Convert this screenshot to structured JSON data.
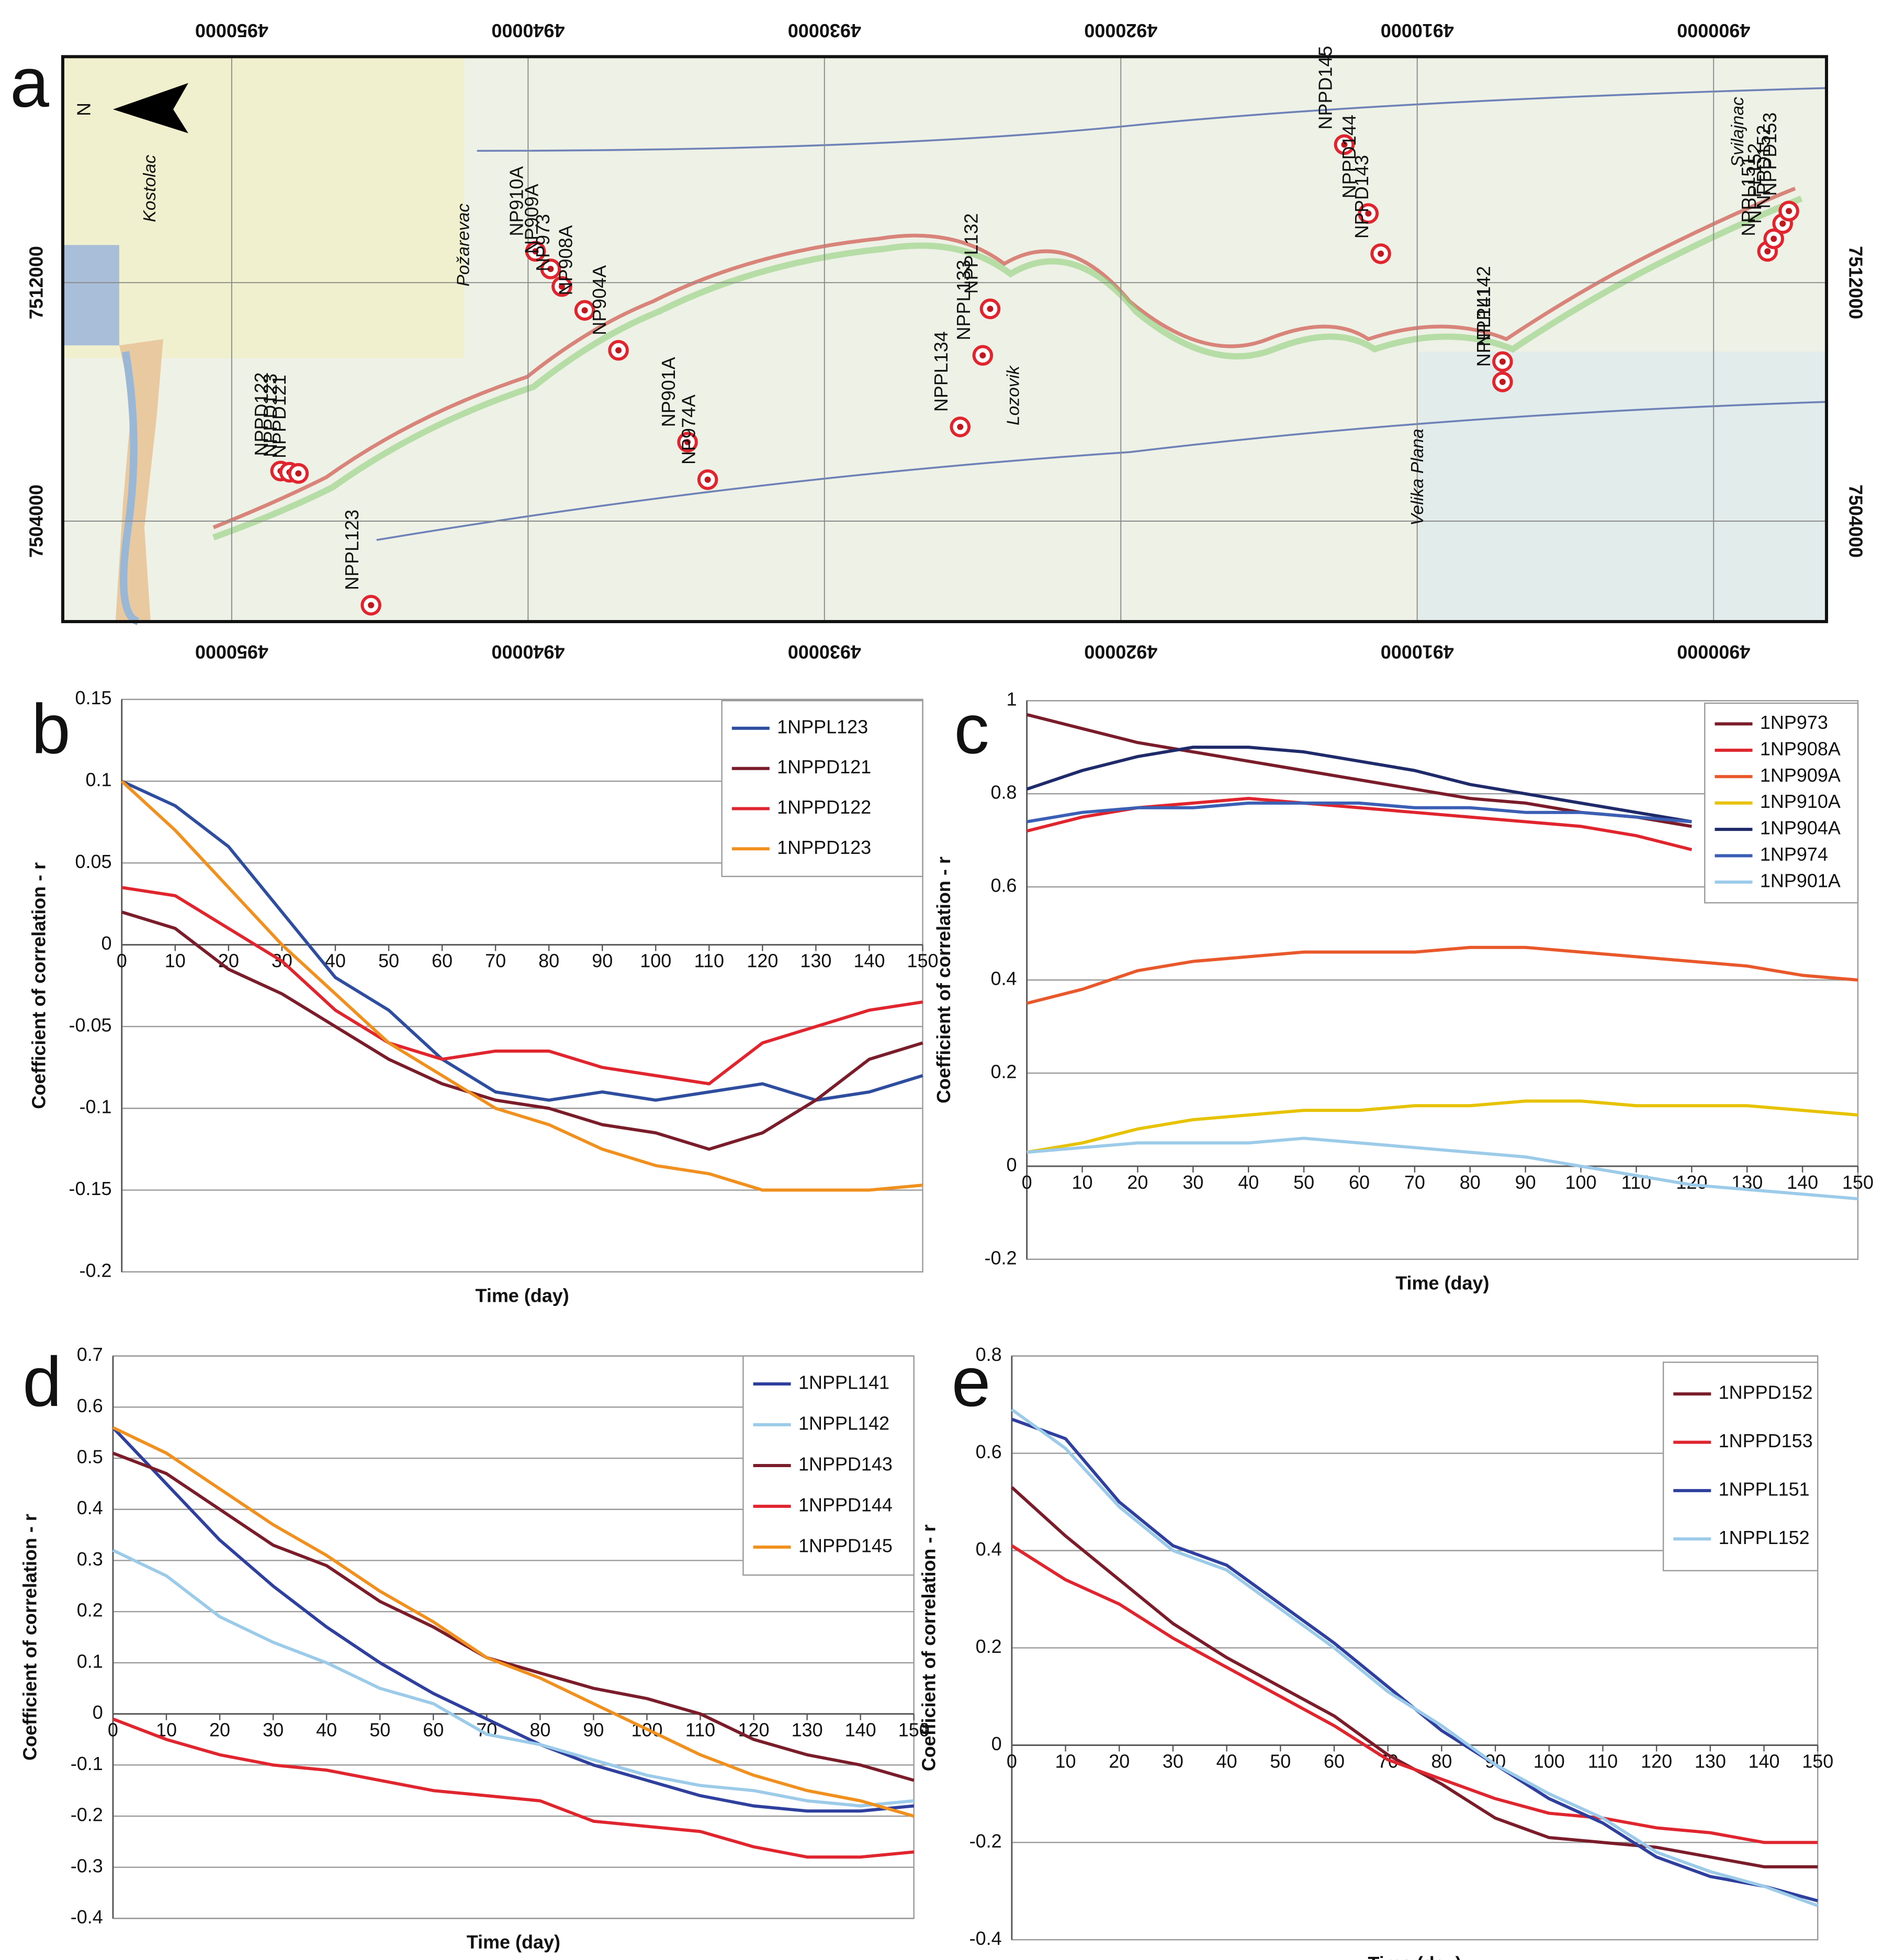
{
  "chart_data": [
    {
      "type": "map",
      "label": "a",
      "north": "N",
      "xlim": [
        4955700,
        4896190
      ],
      "ylim": [
        7500630,
        7519580
      ],
      "xticks": [
        4950000,
        4940000,
        4930000,
        4920000,
        4910000,
        4900000
      ],
      "yticks": [
        7504000,
        7512000
      ],
      "places": [
        "Kostolac",
        "Požarevac",
        "Lozovik",
        "Velika Plana",
        "Svilajnac"
      ],
      "points": [
        {
          "label": "NPPD122",
          "x": 4948350,
          "y": 7505680
        },
        {
          "label": "NPPD123",
          "x": 4948050,
          "y": 7505640
        },
        {
          "label": "NPPD121",
          "x": 4947750,
          "y": 7505600
        },
        {
          "label": "NPPL123",
          "x": 4945300,
          "y": 7501180
        },
        {
          "label": "NP910A",
          "x": 4939750,
          "y": 7513050
        },
        {
          "label": "NP909A",
          "x": 4939240,
          "y": 7512460
        },
        {
          "label": "NP973",
          "x": 4938860,
          "y": 7511870
        },
        {
          "label": "NP908A",
          "x": 4938090,
          "y": 7511070
        },
        {
          "label": "NP904A",
          "x": 4936950,
          "y": 7509730
        },
        {
          "label": "NP901A",
          "x": 4934620,
          "y": 7506650
        },
        {
          "label": "NP974A",
          "x": 4933940,
          "y": 7505390
        },
        {
          "label": "NPPL134",
          "x": 4925420,
          "y": 7507160
        },
        {
          "label": "NPPL133",
          "x": 4924660,
          "y": 7509560
        },
        {
          "label": "NPPL132",
          "x": 4924410,
          "y": 7511120
        },
        {
          "label": "NPPD145",
          "x": 4912460,
          "y": 7516630
        },
        {
          "label": "NPPD144",
          "x": 4911650,
          "y": 7514320
        },
        {
          "label": "NPPD143",
          "x": 4911230,
          "y": 7512970
        },
        {
          "label": "NPPL142",
          "x": 4907120,
          "y": 7509350
        },
        {
          "label": "NPPL141",
          "x": 4907120,
          "y": 7508670
        },
        {
          "label": "NPPL151",
          "x": 4898180,
          "y": 7513050
        },
        {
          "label": "NPPL152",
          "x": 4897970,
          "y": 7513470
        },
        {
          "label": "NPPD152",
          "x": 4897670,
          "y": 7513980
        },
        {
          "label": "NPPD153",
          "x": 4897460,
          "y": 7514400
        }
      ]
    },
    {
      "type": "line",
      "label": "b",
      "x_label": "Time (day)",
      "y_label": "Coefficient of correlation - r",
      "legend": "upper right",
      "grid": true,
      "xlim": [
        0,
        150
      ],
      "ylim": [
        -0.2,
        0.15
      ],
      "xticks": [
        0,
        10,
        20,
        30,
        40,
        50,
        60,
        70,
        80,
        90,
        100,
        110,
        120,
        130,
        140,
        150
      ],
      "yticks": [
        -0.2,
        -0.15,
        -0.1,
        -0.05,
        0,
        0.05,
        0.1,
        0.15
      ],
      "x": [
        0,
        10,
        20,
        30,
        40,
        50,
        60,
        70,
        80,
        90,
        100,
        110,
        120,
        130,
        140,
        150
      ],
      "series": [
        {
          "name": "1NPPL123",
          "color": "#2e4d9e",
          "values": [
            0.1,
            0.085,
            0.06,
            0.02,
            -0.02,
            -0.04,
            -0.07,
            -0.09,
            -0.095,
            -0.09,
            -0.095,
            -0.09,
            -0.085,
            -0.095,
            -0.09,
            -0.08
          ]
        },
        {
          "name": "1NPPD121",
          "color": "#7a1c2a",
          "values": [
            0.02,
            0.01,
            -0.015,
            -0.03,
            -0.05,
            -0.07,
            -0.085,
            -0.095,
            -0.1,
            -0.11,
            -0.115,
            -0.125,
            -0.115,
            -0.095,
            -0.07,
            -0.06
          ]
        },
        {
          "name": "1NPPD122",
          "color": "#e0252f",
          "values": [
            0.035,
            0.03,
            0.01,
            -0.01,
            -0.04,
            -0.06,
            -0.07,
            -0.065,
            -0.065,
            -0.075,
            -0.08,
            -0.085,
            -0.06,
            -0.05,
            -0.04,
            -0.035
          ]
        },
        {
          "name": "1NPPD123",
          "color": "#f0901f",
          "values": [
            0.1,
            0.07,
            0.035,
            0,
            -0.03,
            -0.06,
            -0.08,
            -0.1,
            -0.11,
            -0.125,
            -0.135,
            -0.14,
            -0.15,
            -0.15,
            -0.15,
            -0.147
          ]
        }
      ]
    },
    {
      "type": "line",
      "label": "c",
      "x_label": "Time (day)",
      "y_label": "Coefficient of correlation - r",
      "legend": "upper right",
      "grid": true,
      "xlim": [
        0,
        150
      ],
      "ylim": [
        -0.2,
        1
      ],
      "xticks": [
        0,
        10,
        20,
        30,
        40,
        50,
        60,
        70,
        80,
        90,
        100,
        110,
        120,
        130,
        140,
        150
      ],
      "yticks": [
        -0.2,
        0,
        0.2,
        0.4,
        0.6,
        0.8,
        1
      ],
      "x": [
        0,
        10,
        20,
        30,
        40,
        50,
        60,
        70,
        80,
        90,
        100,
        110,
        120,
        130,
        140,
        150
      ],
      "series": [
        {
          "name": "1NP973",
          "color": "#7a1c2a",
          "values": [
            0.97,
            0.94,
            0.91,
            0.89,
            0.87,
            0.85,
            0.83,
            0.81,
            0.79,
            0.78,
            0.76,
            0.75,
            0.73,
            null,
            null,
            null
          ]
        },
        {
          "name": "1NP908A",
          "color": "#e0252f",
          "values": [
            0.72,
            0.75,
            0.77,
            0.78,
            0.79,
            0.78,
            0.77,
            0.76,
            0.75,
            0.74,
            0.73,
            0.71,
            0.68,
            null,
            null,
            null
          ]
        },
        {
          "name": "1NP909A",
          "color": "#e8582a",
          "values": [
            0.35,
            0.38,
            0.42,
            0.44,
            0.45,
            0.46,
            0.46,
            0.46,
            0.47,
            0.47,
            0.46,
            0.45,
            0.44,
            0.43,
            0.41,
            0.4
          ]
        },
        {
          "name": "1NP910A",
          "color": "#e6c200",
          "values": [
            0.03,
            0.05,
            0.08,
            0.1,
            0.11,
            0.12,
            0.12,
            0.13,
            0.13,
            0.14,
            0.14,
            0.13,
            0.13,
            0.13,
            0.12,
            0.11
          ]
        },
        {
          "name": "1NP904A",
          "color": "#1f2a6b",
          "values": [
            0.81,
            0.85,
            0.88,
            0.9,
            0.9,
            0.89,
            0.87,
            0.85,
            0.82,
            0.8,
            0.78,
            0.76,
            0.74,
            null,
            null,
            null
          ]
        },
        {
          "name": "1NP974",
          "color": "#3a5fb5",
          "values": [
            0.74,
            0.76,
            0.77,
            0.77,
            0.78,
            0.78,
            0.78,
            0.77,
            0.77,
            0.76,
            0.76,
            0.75,
            0.74,
            null,
            null,
            null
          ]
        },
        {
          "name": "1NP901A",
          "color": "#9ccbea",
          "values": [
            0.03,
            0.04,
            0.05,
            0.05,
            0.05,
            0.06,
            0.05,
            0.04,
            0.03,
            0.02,
            0,
            -0.02,
            -0.04,
            -0.05,
            -0.06,
            -0.07
          ]
        }
      ]
    },
    {
      "type": "line",
      "label": "d",
      "x_label": "Time (day)",
      "y_label": "Coefficient of correlation - r",
      "legend": "upper right",
      "grid": true,
      "xlim": [
        0,
        150
      ],
      "ylim": [
        -0.4,
        0.7
      ],
      "xticks": [
        0,
        10,
        20,
        30,
        40,
        50,
        60,
        70,
        80,
        90,
        100,
        110,
        120,
        130,
        140,
        150
      ],
      "yticks": [
        -0.4,
        -0.3,
        -0.2,
        -0.1,
        0,
        0.1,
        0.2,
        0.3,
        0.4,
        0.5,
        0.6,
        0.7
      ],
      "x": [
        0,
        10,
        20,
        30,
        40,
        50,
        60,
        70,
        80,
        90,
        100,
        110,
        120,
        130,
        140,
        150
      ],
      "series": [
        {
          "name": "1NPPL141",
          "color": "#2e3f9e",
          "values": [
            0.56,
            0.45,
            0.34,
            0.25,
            0.17,
            0.1,
            0.04,
            -0.01,
            -0.06,
            -0.1,
            -0.13,
            -0.16,
            -0.18,
            -0.19,
            -0.19,
            -0.18
          ]
        },
        {
          "name": "1NPPL142",
          "color": "#9ccbea",
          "values": [
            0.32,
            0.27,
            0.19,
            0.14,
            0.1,
            0.05,
            0.02,
            -0.04,
            -0.06,
            -0.09,
            -0.12,
            -0.14,
            -0.15,
            -0.17,
            -0.18,
            -0.17
          ]
        },
        {
          "name": "1NPPD143",
          "color": "#7a1c2a",
          "values": [
            0.51,
            0.47,
            0.4,
            0.33,
            0.29,
            0.22,
            0.17,
            0.11,
            0.08,
            0.05,
            0.03,
            0,
            -0.05,
            -0.08,
            -0.1,
            -0.13
          ]
        },
        {
          "name": "1NPPD144",
          "color": "#e0252f",
          "values": [
            -0.01,
            -0.05,
            -0.08,
            -0.1,
            -0.11,
            -0.13,
            -0.15,
            -0.16,
            -0.17,
            -0.21,
            -0.22,
            -0.23,
            -0.26,
            -0.28,
            -0.28,
            -0.27
          ]
        },
        {
          "name": "1NPPD145",
          "color": "#f0901f",
          "values": [
            0.56,
            0.51,
            0.44,
            0.37,
            0.31,
            0.24,
            0.18,
            0.11,
            0.07,
            0.02,
            -0.03,
            -0.08,
            -0.12,
            -0.15,
            -0.17,
            -0.2
          ]
        }
      ]
    },
    {
      "type": "line",
      "label": "e",
      "x_label": "Time (day)",
      "y_label": "Coefficient of correlation - r",
      "legend": "upper right",
      "grid": true,
      "xlim": [
        0,
        150
      ],
      "ylim": [
        -0.4,
        0.8
      ],
      "xticks": [
        0,
        10,
        20,
        30,
        40,
        50,
        60,
        70,
        80,
        90,
        100,
        110,
        120,
        130,
        140,
        150
      ],
      "yticks": [
        -0.4,
        -0.2,
        0,
        0.2,
        0.4,
        0.6,
        0.8
      ],
      "x": [
        0,
        10,
        20,
        30,
        40,
        50,
        60,
        70,
        80,
        90,
        100,
        110,
        120,
        130,
        140,
        150
      ],
      "series": [
        {
          "name": "1NPPD152",
          "color": "#7a1c2a",
          "values": [
            0.53,
            0.43,
            0.34,
            0.25,
            0.18,
            0.12,
            0.06,
            -0.02,
            -0.08,
            -0.15,
            -0.19,
            -0.2,
            -0.21,
            -0.23,
            -0.25,
            -0.25
          ]
        },
        {
          "name": "1NPPD153",
          "color": "#e0252f",
          "values": [
            0.41,
            0.34,
            0.29,
            0.22,
            0.16,
            0.1,
            0.04,
            -0.03,
            -0.07,
            -0.11,
            -0.14,
            -0.15,
            -0.17,
            -0.18,
            -0.2,
            -0.2
          ]
        },
        {
          "name": "1NPPL151",
          "color": "#2e3f9e",
          "values": [
            0.67,
            0.63,
            0.5,
            0.41,
            0.37,
            0.29,
            0.21,
            0.12,
            0.03,
            -0.04,
            -0.11,
            -0.16,
            -0.23,
            -0.27,
            -0.29,
            -0.32
          ]
        },
        {
          "name": "1NPPL152",
          "color": "#9ccbea",
          "values": [
            0.69,
            0.61,
            0.49,
            0.4,
            0.36,
            0.28,
            0.2,
            0.11,
            0.04,
            -0.04,
            -0.1,
            -0.15,
            -0.22,
            -0.26,
            -0.29,
            -0.33
          ]
        }
      ]
    }
  ]
}
